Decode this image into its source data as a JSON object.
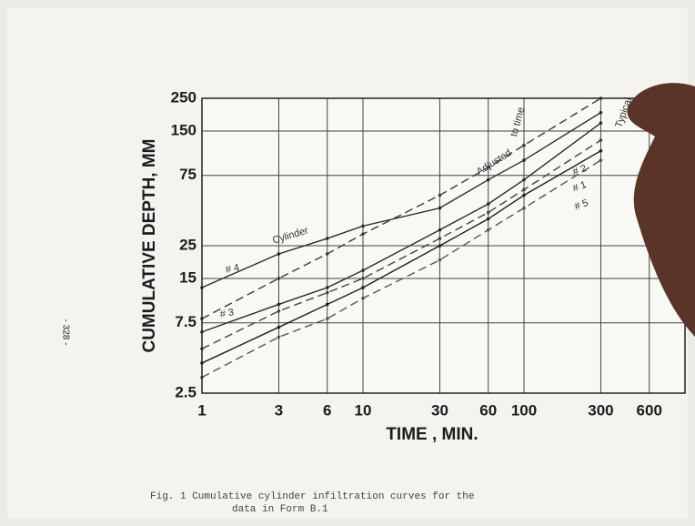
{
  "chart_data": {
    "type": "line",
    "xlabel": "TIME ,  MIN.",
    "ylabel": "CUMULATIVE DEPTH, MM",
    "x": [
      1,
      3,
      6,
      10,
      30,
      60,
      100,
      300
    ],
    "series": [
      {
        "color": "#2a2a2a",
        "dash": false,
        "values": [
          13,
          22,
          28,
          34,
          45,
          70,
          95,
          200
        ]
      },
      {
        "color": "#3a3a3a",
        "dash": true,
        "values": [
          8,
          15,
          22,
          30,
          55,
          85,
          120,
          250
        ]
      },
      {
        "color": "#2a2a2a",
        "dash": false,
        "values": [
          6.5,
          10,
          13,
          17,
          32,
          48,
          70,
          170
        ]
      },
      {
        "color": "#444444",
        "dash": true,
        "values": [
          5,
          9,
          12,
          15,
          28,
          42,
          60,
          130
        ]
      },
      {
        "color": "#1f1f1f",
        "dash": false,
        "values": [
          4,
          7,
          10,
          13,
          25,
          38,
          55,
          110
        ]
      },
      {
        "color": "#555555",
        "dash": true,
        "values": [
          3.2,
          6,
          8,
          11,
          20,
          32,
          45,
          95
        ]
      }
    ],
    "xlim": [
      1,
      1000
    ],
    "ylim": [
      2.5,
      250
    ],
    "log_x": true,
    "log_y": true,
    "grid": true,
    "xticks": [
      1,
      3,
      6,
      10,
      30,
      60,
      100,
      300,
      600
    ],
    "yticks": [
      2.5,
      7.5,
      15,
      25,
      75,
      150,
      250
    ],
    "annotations": [
      "Cylinder",
      "Adjusted",
      "to time",
      "Typical",
      "# 4",
      "# 3",
      "# 2",
      "# 1",
      "# 5"
    ],
    "page_number": "- 328 -",
    "caption": [
      "Fig. 1    Cumulative  cylinder  infiltration  curves  for the",
      "data in Form B.1"
    ]
  }
}
